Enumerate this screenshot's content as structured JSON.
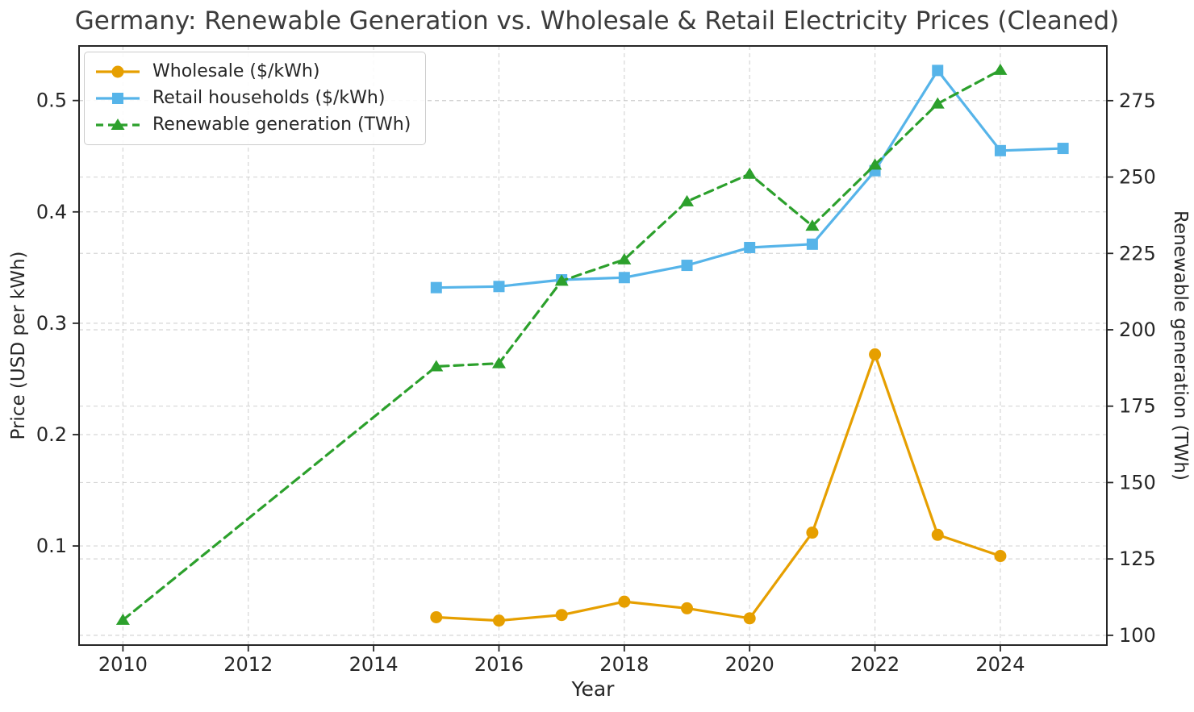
{
  "figure": {
    "background": "#ffffff"
  },
  "chart_data": {
    "type": "line",
    "title": "Germany: Renewable Generation vs. Wholesale & Retail Electricity Prices (Cleaned)",
    "xlabel": "Year",
    "ylabel_left": "Price (USD per kWh)",
    "ylabel_right": "Renewable generation (TWh)",
    "xlim": [
      2009.3,
      2025.7
    ],
    "x_ticks": [
      2010,
      2012,
      2014,
      2016,
      2018,
      2020,
      2022,
      2024
    ],
    "ylim_left": [
      0.011,
      0.549
    ],
    "y_ticks_left": [
      0.1,
      0.2,
      0.3,
      0.4,
      0.5
    ],
    "ylim_right": [
      96.8,
      292.9
    ],
    "y_ticks_right": [
      100,
      125,
      150,
      175,
      200,
      225,
      250,
      275
    ],
    "grid": true,
    "grid_style": "dashed",
    "legend_position": "upper-left",
    "colors": {
      "wholesale": "#E69F00",
      "retail": "#56B4E9",
      "renewables": "#2CA02C"
    },
    "series": [
      {
        "name": "Wholesale ($/kWh)",
        "axis": "left",
        "color": "#E69F00",
        "line_style": "solid",
        "marker": "circle",
        "x": [
          2015,
          2016,
          2017,
          2018,
          2019,
          2020,
          2021,
          2022,
          2023,
          2024
        ],
        "y": [
          0.036,
          0.033,
          0.038,
          0.05,
          0.044,
          0.035,
          0.112,
          0.272,
          0.11,
          0.091
        ]
      },
      {
        "name": "Retail households ($/kWh)",
        "axis": "left",
        "color": "#56B4E9",
        "line_style": "solid",
        "marker": "square",
        "x": [
          2015,
          2016,
          2017,
          2018,
          2019,
          2020,
          2021,
          2022,
          2023,
          2024,
          2025
        ],
        "y": [
          0.332,
          0.333,
          0.339,
          0.341,
          0.352,
          0.368,
          0.371,
          0.437,
          0.527,
          0.455,
          0.457
        ]
      },
      {
        "name": "Renewable generation (TWh)",
        "axis": "right",
        "color": "#2CA02C",
        "line_style": "dashed",
        "marker": "triangle",
        "x": [
          2010,
          2015,
          2016,
          2017,
          2018,
          2019,
          2020,
          2021,
          2022,
          2023,
          2024
        ],
        "y": [
          105,
          188,
          189,
          216,
          223,
          242,
          251,
          234,
          254,
          274,
          285
        ]
      }
    ]
  }
}
